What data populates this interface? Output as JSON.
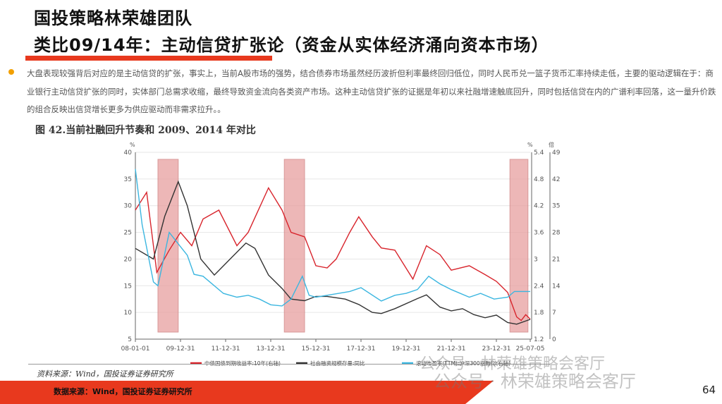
{
  "header": {
    "line1": "国投策略林荣雄团队",
    "line2": "类比09/14年：主动信贷扩张论（资金从实体经济涌向资本市场）"
  },
  "body": {
    "paragraph": "大盘表现较强背后对应的是主动信贷的扩张，事实上，当前A股市场的强势，结合债券市场虽然经历波折但利率最终回归低位，同时人民币兑一篮子货币汇率持续走低，主要的驱动逻辑在于：商业银行主动信贷扩张的同时，实体部门总需求收缩，最终导致资金流向各类资产市场。这种主动信贷扩张的证据是年初以来社融增速触底回升，同时包括信贷在内的广谱利率回落，这一量升价跌的组合反映出信贷增长更多为供应驱动而非需求拉升。。"
  },
  "figure": {
    "title": "图 42.当前社融回升节奏和 2009、2014 年对比",
    "source": "资料来源：Wind，国投证券证券研究所"
  },
  "footer": {
    "source": "数据来源：Wind，国投证券证券研究所",
    "page": "64"
  },
  "watermark": "公众号 · 林荣雄策略会客厅",
  "colors": {
    "accent": "#e8391e",
    "bullet": "#f2a000",
    "red_series": "#d8242c",
    "black_series": "#333333",
    "cyan_series": "#3bb6e0",
    "shade": "#e8a0a0"
  },
  "chart_data": {
    "type": "line",
    "x_ticks": [
      "08-01-01",
      "09-12-31",
      "11-12-31",
      "13-12-31",
      "15-12-31",
      "17-12-31",
      "19-12-31",
      "21-12-31",
      "23-12-31",
      "25-07-05"
    ],
    "y_left": {
      "unit": "%",
      "range": [
        5,
        40
      ],
      "ticks": [
        "5",
        "10",
        "15",
        "20",
        "25",
        "30",
        "35",
        "40"
      ]
    },
    "y_right": {
      "unit": "%",
      "range": [
        1.2,
        5.4
      ],
      "ticks": [
        "1.2",
        "1.8",
        "2.4",
        "3",
        "3.6",
        "4.2",
        "4.8",
        "5.4"
      ]
    },
    "y_right2": {
      "unit": "倍",
      "range": [
        0,
        49
      ],
      "ticks": [
        "0",
        "7",
        "14",
        "21",
        "28",
        "35",
        "42",
        "49"
      ]
    },
    "shaded_periods": [
      [
        2009.0,
        2009.9
      ],
      [
        2014.6,
        2015.5
      ],
      [
        2024.6,
        2025.4
      ]
    ],
    "grid": true,
    "legend": "bottom",
    "series": [
      {
        "name": "中债国债到期收益率:10年(右轴)",
        "axis": "right",
        "color": "#d8242c",
        "x": [
          2008.0,
          2008.5,
          2008.95,
          2009.5,
          2010.0,
          2010.5,
          2011.0,
          2011.7,
          2012.5,
          2013.0,
          2013.9,
          2014.5,
          2014.9,
          2015.5,
          2016.0,
          2016.5,
          2016.9,
          2017.5,
          2017.9,
          2018.5,
          2018.9,
          2019.5,
          2020.3,
          2020.9,
          2021.5,
          2022.0,
          2022.8,
          2023.5,
          2024.0,
          2024.5,
          2024.9,
          2025.1,
          2025.3,
          2025.5
        ],
        "y": [
          4.1,
          4.5,
          2.7,
          3.2,
          3.6,
          3.3,
          3.9,
          4.1,
          3.3,
          3.6,
          4.6,
          4.1,
          3.6,
          3.5,
          2.85,
          2.8,
          3.0,
          3.6,
          3.95,
          3.5,
          3.25,
          3.2,
          2.55,
          3.3,
          3.1,
          2.75,
          2.85,
          2.65,
          2.5,
          2.25,
          1.7,
          1.62,
          1.75,
          1.65
        ]
      },
      {
        "name": "社会融资规模存量:同比",
        "axis": "left",
        "color": "#333333",
        "x": [
          2008.0,
          2008.8,
          2009.3,
          2009.9,
          2010.3,
          2010.9,
          2011.5,
          2012.2,
          2012.9,
          2013.3,
          2013.9,
          2014.5,
          2014.9,
          2015.5,
          2016.0,
          2016.5,
          2017.3,
          2017.9,
          2018.5,
          2018.9,
          2019.5,
          2020.5,
          2020.9,
          2021.5,
          2022.0,
          2022.5,
          2023.0,
          2023.5,
          2024.0,
          2024.5,
          2024.9,
          2025.5
        ],
        "y": [
          22,
          20,
          28,
          34.5,
          30,
          20,
          17,
          20,
          23,
          22,
          17,
          14.5,
          12.5,
          12.2,
          13,
          13,
          12.5,
          11.5,
          10,
          9.8,
          10.7,
          12.6,
          13.3,
          11,
          10.3,
          10.7,
          9.6,
          9,
          9.5,
          8.1,
          7.8,
          8.7
        ]
      },
      {
        "name": "滚动市盈率(TTM):沪深300指数(次右轴)",
        "axis": "right2",
        "color": "#3bb6e0",
        "x": [
          2008.0,
          2008.3,
          2008.8,
          2009.0,
          2009.5,
          2009.9,
          2010.3,
          2010.6,
          2011.0,
          2011.9,
          2012.5,
          2013.0,
          2013.5,
          2014.0,
          2014.5,
          2014.9,
          2015.4,
          2015.7,
          2016.0,
          2016.5,
          2017.5,
          2018.0,
          2018.9,
          2019.5,
          2020.0,
          2020.5,
          2021.0,
          2021.5,
          2022.0,
          2022.8,
          2023.3,
          2023.9,
          2024.5,
          2024.8,
          2025.5
        ],
        "y": [
          44.6,
          30,
          15,
          14,
          28,
          25,
          22,
          17,
          16.5,
          12,
          11,
          11.5,
          10.5,
          9,
          8.7,
          10.5,
          16.5,
          11.5,
          11,
          11.5,
          12.5,
          13.5,
          10,
          11.5,
          12,
          13,
          16.5,
          14.5,
          13,
          11,
          12,
          10.5,
          11,
          12.5,
          12.5
        ]
      }
    ]
  }
}
